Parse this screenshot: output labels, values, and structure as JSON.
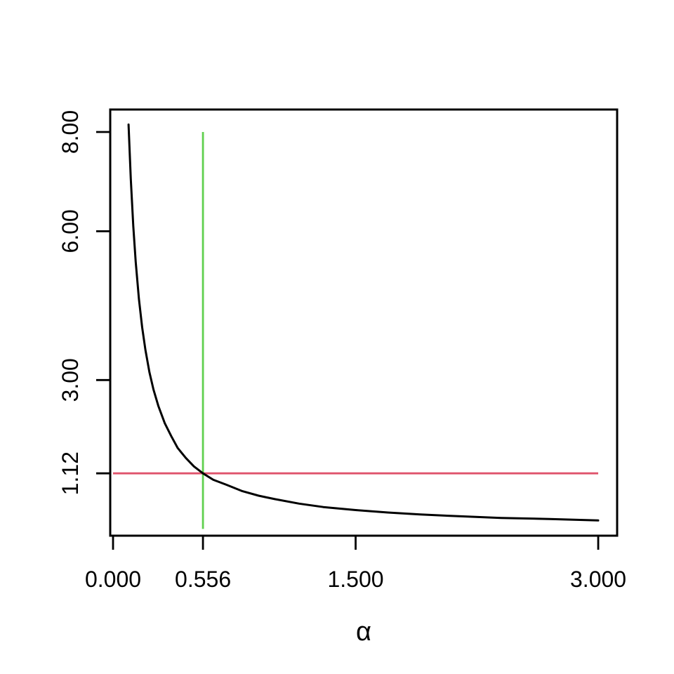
{
  "chart_data": {
    "type": "line",
    "title": "",
    "xlabel": "α",
    "ylabel": "",
    "grid": false,
    "legend": false,
    "x_axis": {
      "ticks": [
        0,
        0.556,
        1.5,
        3
      ],
      "tick_labels": [
        "0.000",
        "0.556",
        "1.500",
        "3.000"
      ],
      "range": [
        -0.0174,
        3.117
      ]
    },
    "y_axis": {
      "ticks": [
        1.12,
        3,
        6,
        8
      ],
      "tick_labels": [
        "1.12",
        "3.00",
        "6.00",
        "8.00"
      ],
      "range": [
        -0.137,
        8.453
      ]
    },
    "series": [
      {
        "name": "curve",
        "color": "#000000",
        "points": [
          [
            0.096,
            8.15
          ],
          [
            0.11,
            7.05
          ],
          [
            0.125,
            6.11
          ],
          [
            0.14,
            5.38
          ],
          [
            0.16,
            4.63
          ],
          [
            0.18,
            4.06
          ],
          [
            0.2,
            3.61
          ],
          [
            0.225,
            3.16
          ],
          [
            0.25,
            2.81
          ],
          [
            0.28,
            2.48
          ],
          [
            0.32,
            2.13
          ],
          [
            0.36,
            1.87
          ],
          [
            0.4,
            1.63
          ],
          [
            0.45,
            1.43
          ],
          [
            0.5,
            1.26
          ],
          [
            0.556,
            1.12
          ],
          [
            0.62,
            0.99
          ],
          [
            0.7,
            0.89
          ],
          [
            0.8,
            0.76
          ],
          [
            0.9,
            0.67
          ],
          [
            1.0,
            0.6
          ],
          [
            1.15,
            0.51
          ],
          [
            1.3,
            0.44
          ],
          [
            1.5,
            0.38
          ],
          [
            1.7,
            0.33
          ],
          [
            1.9,
            0.29
          ],
          [
            2.1,
            0.26
          ],
          [
            2.4,
            0.22
          ],
          [
            2.7,
            0.2
          ],
          [
            3.0,
            0.17
          ]
        ]
      }
    ],
    "reference_lines": [
      {
        "name": "vertical-reference",
        "orientation": "vertical",
        "color": "#61D04F",
        "x": 0.556,
        "y_from": 0,
        "y_to": 8
      },
      {
        "name": "horizontal-reference",
        "orientation": "horizontal",
        "color": "#DF536B",
        "y": 1.12,
        "x_from": 0,
        "x_to": 3
      }
    ],
    "crossing_point": {
      "x": 0.556,
      "y": 1.12
    }
  },
  "colors": {
    "background": "#FFFFFF",
    "axis": "#000000"
  }
}
